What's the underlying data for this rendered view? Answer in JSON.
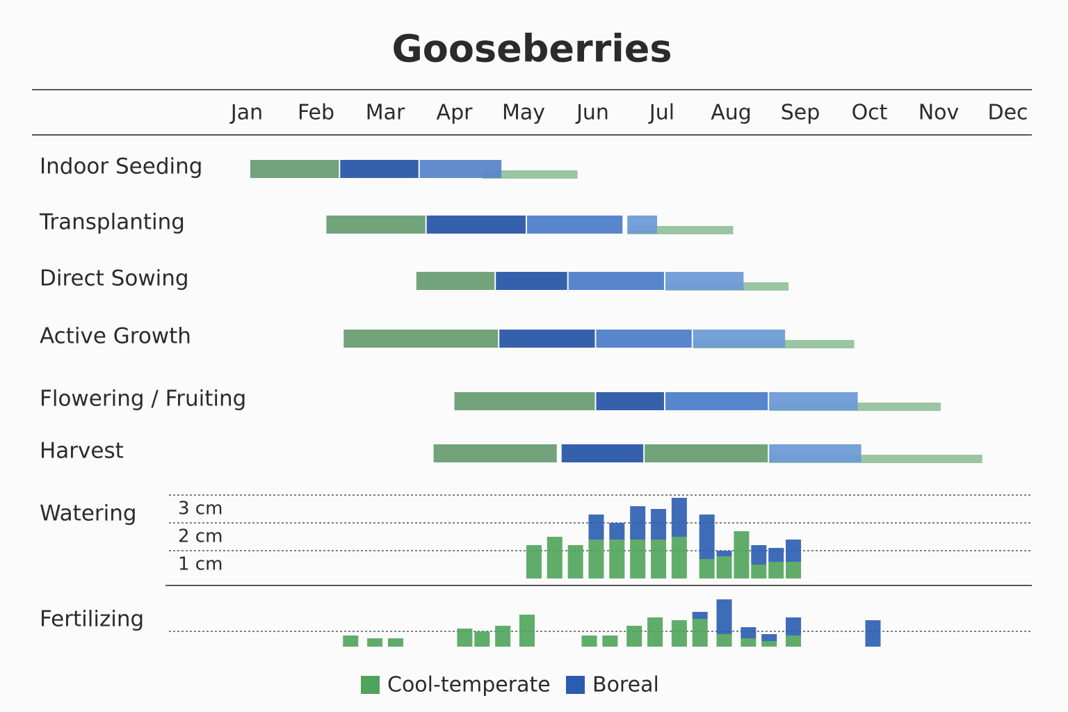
{
  "chart_data": {
    "type": "gantt",
    "title": "Gooseberries",
    "months": [
      "Jan",
      "Feb",
      "Mar",
      "Apr",
      "May",
      "Jun",
      "Jul",
      "Aug",
      "Sep",
      "Oct",
      "Nov",
      "Dec"
    ],
    "rows": [
      {
        "label": "Indoor Seeding",
        "segments": [
          {
            "start": 0.05,
            "end": 1.35,
            "color": "#6a9e74"
          },
          {
            "start": 1.35,
            "end": 2.5,
            "color": "#2a57a8"
          },
          {
            "start": 3.4,
            "end": 4.8,
            "color": "#93c29e",
            "thin": true
          },
          {
            "start": 2.5,
            "end": 3.7,
            "color": "#5b86cc"
          }
        ]
      },
      {
        "label": "Transplanting",
        "segments": [
          {
            "start": 1.15,
            "end": 2.6,
            "color": "#6a9e74"
          },
          {
            "start": 2.6,
            "end": 4.05,
            "color": "#2a57a8"
          },
          {
            "start": 4.05,
            "end": 5.45,
            "color": "#4f7fca"
          },
          {
            "start": 5.5,
            "end": 7.05,
            "color": "#93c29e",
            "thin": true
          },
          {
            "start": 5.5,
            "end": 5.95,
            "color": "#6e9bd6"
          }
        ]
      },
      {
        "label": "Direct Sowing",
        "segments": [
          {
            "start": 2.45,
            "end": 3.6,
            "color": "#6a9e74"
          },
          {
            "start": 3.6,
            "end": 4.65,
            "color": "#2a57a8"
          },
          {
            "start": 4.65,
            "end": 6.05,
            "color": "#4f7fca"
          },
          {
            "start": 6.05,
            "end": 7.85,
            "color": "#93c29e",
            "thin": true
          },
          {
            "start": 6.05,
            "end": 7.2,
            "color": "#6e9bd6"
          }
        ]
      },
      {
        "label": "Active Growth",
        "segments": [
          {
            "start": 1.4,
            "end": 3.65,
            "color": "#6a9e74"
          },
          {
            "start": 3.65,
            "end": 5.05,
            "color": "#2a57a8"
          },
          {
            "start": 5.05,
            "end": 6.45,
            "color": "#4f7fca"
          },
          {
            "start": 6.45,
            "end": 8.8,
            "color": "#93c29e",
            "thin": true
          },
          {
            "start": 6.45,
            "end": 7.8,
            "color": "#6e9bd6"
          }
        ]
      },
      {
        "label": "Flowering / Fruiting",
        "segments": [
          {
            "start": 3.0,
            "end": 5.05,
            "color": "#6a9e74"
          },
          {
            "start": 5.05,
            "end": 6.05,
            "color": "#2a57a8"
          },
          {
            "start": 6.05,
            "end": 7.55,
            "color": "#4f7fca"
          },
          {
            "start": 7.55,
            "end": 10.05,
            "color": "#93c29e",
            "thin": true
          },
          {
            "start": 7.55,
            "end": 8.85,
            "color": "#6e9bd6"
          }
        ]
      },
      {
        "label": "Harvest",
        "segments": [
          {
            "start": 2.7,
            "end": 4.5,
            "color": "#6a9e74"
          },
          {
            "start": 4.55,
            "end": 5.75,
            "color": "#2a57a8"
          },
          {
            "start": 5.75,
            "end": 7.55,
            "color": "#6a9e74"
          },
          {
            "start": 7.55,
            "end": 10.65,
            "color": "#93c29e",
            "thin": true
          },
          {
            "start": 7.55,
            "end": 8.9,
            "color": "#6e9bd6"
          }
        ]
      }
    ],
    "watering": {
      "label": "Watering",
      "yticks": [
        {
          "value": 1,
          "label": "1 cm"
        },
        {
          "value": 2,
          "label": "2 cm"
        },
        {
          "value": 3,
          "label": "3 cm"
        }
      ],
      "ylim": [
        0,
        3
      ],
      "x": [
        4.15,
        4.45,
        4.75,
        5.05,
        5.35,
        5.65,
        5.95,
        6.25,
        6.65,
        6.9,
        7.15,
        7.4,
        7.65,
        7.9
      ],
      "series": [
        {
          "name": "Cool-temperate",
          "color": "#4fa35a",
          "values": [
            1.2,
            1.5,
            1.2,
            1.4,
            1.4,
            1.4,
            1.4,
            1.5,
            0.7,
            0.8,
            1.7,
            0.5,
            0.6,
            0.6
          ]
        },
        {
          "name": "Boreal",
          "color": "#2a5cb0",
          "values": [
            0,
            0,
            0,
            0.9,
            0.6,
            1.2,
            1.1,
            1.4,
            1.6,
            0.2,
            0,
            0.7,
            0.5,
            0.8
          ]
        }
      ]
    },
    "fertilizing": {
      "label": "Fertilizing",
      "x": [
        1.5,
        1.85,
        2.15,
        3.15,
        3.4,
        3.7,
        4.05,
        4.95,
        5.25,
        5.6,
        5.9,
        6.25,
        6.55,
        6.9,
        7.25,
        7.55,
        7.9,
        9.05
      ],
      "series": [
        {
          "color": "#4fa35a",
          "values": [
            0.4,
            0.3,
            0.3,
            0.65,
            0.55,
            0.75,
            1.15,
            0.4,
            0.4,
            0.75,
            1.05,
            0.95,
            1.0,
            0.45,
            0.3,
            0.2,
            0.4,
            0
          ]
        },
        {
          "color": "#2a5cb0",
          "values": [
            0,
            0,
            0,
            0,
            0,
            0,
            0,
            0,
            0,
            0,
            0,
            0,
            0.25,
            1.25,
            0.4,
            0.25,
            0.65,
            0.95
          ]
        }
      ]
    }
  }
}
